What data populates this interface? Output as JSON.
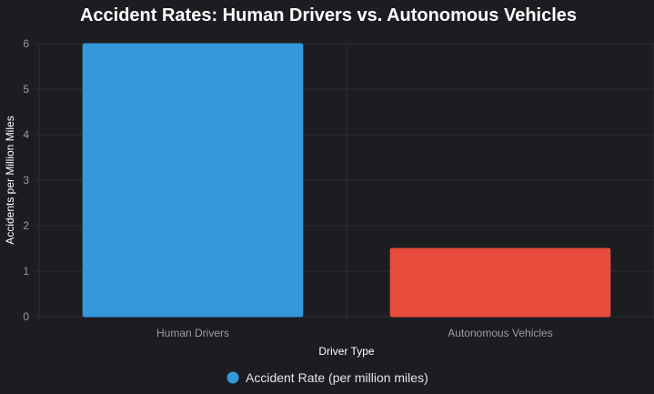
{
  "chart_data": {
    "type": "bar",
    "title": "Accident Rates: Human Drivers vs. Autonomous Vehicles",
    "xlabel": "Driver Type",
    "ylabel": "Accidents per Million Miles",
    "categories": [
      "Human Drivers",
      "Autonomous Vehicles"
    ],
    "series": [
      {
        "name": "Accident Rate (per million miles)",
        "values": [
          6.0,
          1.5
        ],
        "colors": [
          "#3498db",
          "#e74c3c"
        ]
      }
    ],
    "ylim": [
      0,
      6
    ],
    "yticks": [
      "0",
      "1",
      "2",
      "3",
      "4",
      "5",
      "6"
    ],
    "grid": true,
    "legend_position": "bottom"
  },
  "colors": {
    "background": "#1c1d21",
    "grid": "#2e3035",
    "title": "#ffffff",
    "tick": "#9a9ca3",
    "legend_marker": "#3498db"
  }
}
